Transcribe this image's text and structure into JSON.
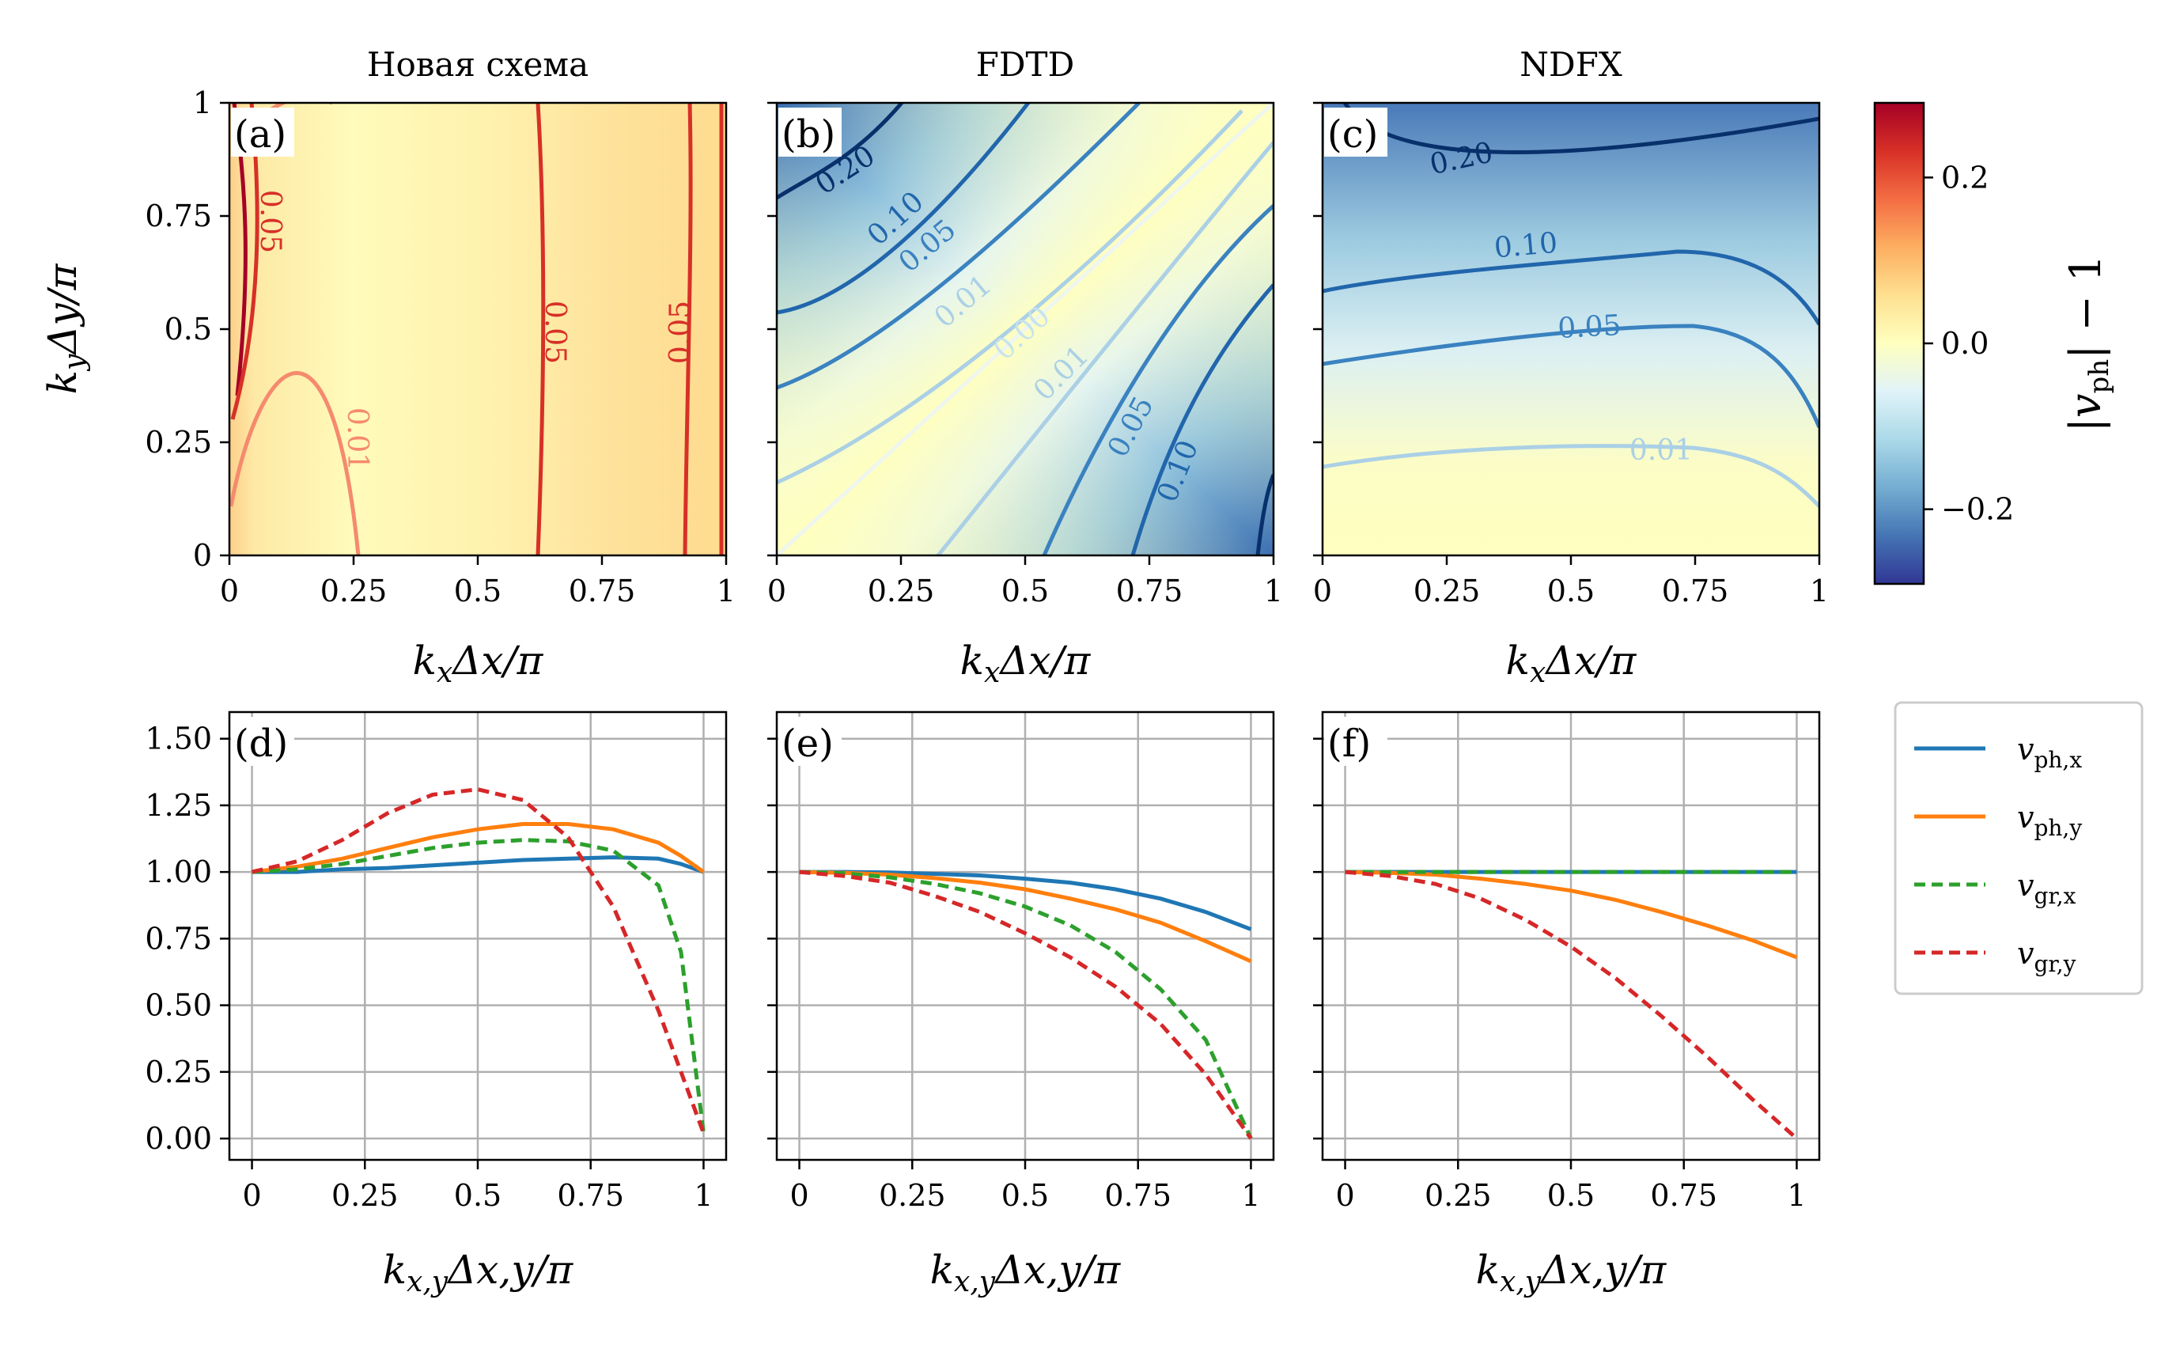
{
  "figure": {
    "colorbar": {
      "label": "|v_ph| − 1",
      "ticks": [
        "0.2",
        "0.0",
        "−0.2"
      ],
      "tick_values": [
        0.2,
        0.0,
        -0.2
      ],
      "range": [
        -0.29,
        0.29
      ],
      "cmap": "RdYlBu_r"
    },
    "legend": {
      "entries": [
        {
          "label": "v_ph,x",
          "color": "#1f77b4",
          "style": "solid"
        },
        {
          "label": "v_ph,y",
          "color": "#ff7f0e",
          "style": "solid"
        },
        {
          "label": "v_gr,x",
          "color": "#2ca02c",
          "style": "dashed"
        },
        {
          "label": "v_gr,y",
          "color": "#d62728",
          "style": "dashed"
        }
      ],
      "placement": "right"
    }
  },
  "chart_data": [
    {
      "id": "a",
      "type": "heatmap",
      "panel_label": "(a)",
      "title": "Новая схема",
      "xlabel": "k_xΔx/π",
      "ylabel": "k_yΔy/π",
      "xlim": [
        0,
        1
      ],
      "ylim": [
        0,
        1
      ],
      "xticks": [
        "0",
        "0.25",
        "0.5",
        "0.75",
        "1"
      ],
      "yticks": [
        "0",
        "0.25",
        "0.5",
        "0.75",
        "1"
      ],
      "contour_labels": [
        "0.05",
        "0.05",
        "0.05",
        "0.01"
      ]
    },
    {
      "id": "b",
      "type": "heatmap",
      "panel_label": "(b)",
      "title": "FDTD",
      "xlabel": "k_xΔx/π",
      "xlim": [
        0,
        1
      ],
      "ylim": [
        0,
        1
      ],
      "xticks": [
        "0",
        "0.25",
        "0.5",
        "0.75",
        "1"
      ],
      "contour_labels": [
        "0.20",
        "0.10",
        "0.05",
        "0.01",
        "0.00",
        "0.01",
        "0.05",
        "0.10"
      ]
    },
    {
      "id": "c",
      "type": "heatmap",
      "panel_label": "(c)",
      "title": "NDFX",
      "xlabel": "k_xΔx/π",
      "xlim": [
        0,
        1
      ],
      "ylim": [
        0,
        1
      ],
      "xticks": [
        "0",
        "0.25",
        "0.5",
        "0.75",
        "1"
      ],
      "contour_labels": [
        "0.20",
        "0.10",
        "0.05",
        "0.01"
      ]
    },
    {
      "id": "d",
      "type": "line",
      "panel_label": "(d)",
      "xlabel": "k_x,yΔx,y/π",
      "xlim": [
        -0.05,
        1.05
      ],
      "ylim": [
        -0.08,
        1.6
      ],
      "xticks": [
        "0",
        "0.25",
        "0.5",
        "0.75",
        "1"
      ],
      "yticks": [
        "0.00",
        "0.25",
        "0.50",
        "0.75",
        "1.00",
        "1.25",
        "1.50"
      ],
      "grid": true,
      "x": [
        0,
        0.1,
        0.2,
        0.3,
        0.4,
        0.5,
        0.6,
        0.7,
        0.8,
        0.9,
        0.95,
        1.0
      ],
      "series": [
        {
          "name": "v_ph,x",
          "values": [
            1.0,
            1.0,
            1.01,
            1.015,
            1.025,
            1.035,
            1.045,
            1.05,
            1.055,
            1.05,
            1.03,
            1.0
          ]
        },
        {
          "name": "v_ph,y",
          "values": [
            1.0,
            1.02,
            1.05,
            1.09,
            1.13,
            1.16,
            1.18,
            1.18,
            1.16,
            1.11,
            1.06,
            1.0
          ]
        },
        {
          "name": "v_gr,x",
          "values": [
            1.0,
            1.01,
            1.03,
            1.06,
            1.09,
            1.11,
            1.12,
            1.115,
            1.08,
            0.95,
            0.7,
            0.02
          ]
        },
        {
          "name": "v_gr,y",
          "values": [
            1.0,
            1.04,
            1.12,
            1.22,
            1.29,
            1.31,
            1.27,
            1.13,
            0.87,
            0.48,
            0.25,
            0.02
          ]
        }
      ]
    },
    {
      "id": "e",
      "type": "line",
      "panel_label": "(e)",
      "xlabel": "k_x,yΔx,y/π",
      "xlim": [
        -0.05,
        1.05
      ],
      "ylim": [
        -0.08,
        1.6
      ],
      "xticks": [
        "0",
        "0.25",
        "0.5",
        "0.75",
        "1"
      ],
      "grid": true,
      "x": [
        0,
        0.1,
        0.2,
        0.3,
        0.4,
        0.5,
        0.6,
        0.7,
        0.8,
        0.9,
        1.0
      ],
      "series": [
        {
          "name": "v_ph,x",
          "values": [
            1.0,
            1.0,
            0.998,
            0.993,
            0.987,
            0.975,
            0.96,
            0.935,
            0.9,
            0.85,
            0.785
          ]
        },
        {
          "name": "v_ph,y",
          "values": [
            1.0,
            0.997,
            0.99,
            0.977,
            0.96,
            0.935,
            0.9,
            0.86,
            0.81,
            0.74,
            0.665
          ]
        },
        {
          "name": "v_gr,x",
          "values": [
            1.0,
            0.995,
            0.98,
            0.955,
            0.92,
            0.87,
            0.8,
            0.7,
            0.56,
            0.37,
            0.0
          ]
        },
        {
          "name": "v_gr,y",
          "values": [
            1.0,
            0.985,
            0.96,
            0.91,
            0.85,
            0.77,
            0.68,
            0.57,
            0.43,
            0.24,
            0.0
          ]
        }
      ]
    },
    {
      "id": "f",
      "type": "line",
      "panel_label": "(f)",
      "xlabel": "k_x,yΔx,y/π",
      "xlim": [
        -0.05,
        1.05
      ],
      "ylim": [
        -0.08,
        1.6
      ],
      "xticks": [
        "0",
        "0.25",
        "0.5",
        "0.75",
        "1"
      ],
      "grid": true,
      "x": [
        0,
        0.1,
        0.2,
        0.3,
        0.4,
        0.5,
        0.6,
        0.7,
        0.8,
        0.9,
        1.0
      ],
      "series": [
        {
          "name": "v_ph,x",
          "values": [
            1.0,
            1.0,
            1.0,
            1.0,
            1.0,
            1.0,
            1.0,
            1.0,
            1.0,
            1.0,
            1.0
          ]
        },
        {
          "name": "v_ph,y",
          "values": [
            1.0,
            0.997,
            0.99,
            0.975,
            0.955,
            0.93,
            0.895,
            0.85,
            0.8,
            0.745,
            0.68
          ]
        },
        {
          "name": "v_gr,x",
          "values": [
            1.0,
            1.0,
            1.0,
            1.0,
            1.0,
            1.0,
            1.0,
            1.0,
            1.0,
            1.0,
            1.0
          ]
        },
        {
          "name": "v_gr,y",
          "values": [
            1.0,
            0.985,
            0.955,
            0.9,
            0.82,
            0.72,
            0.6,
            0.46,
            0.31,
            0.15,
            0.0
          ]
        }
      ]
    }
  ]
}
